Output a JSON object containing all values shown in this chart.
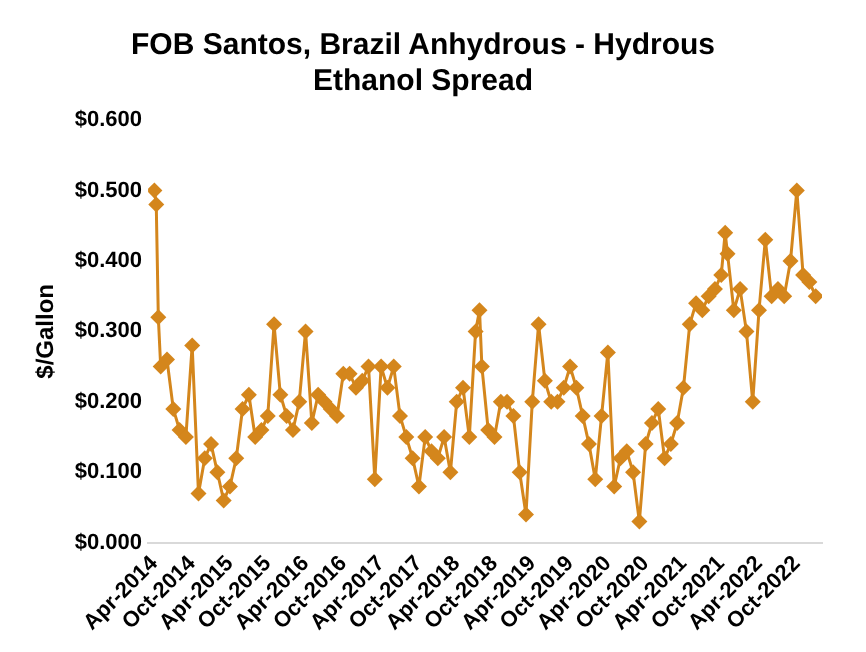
{
  "chart_data": {
    "type": "line",
    "title": "FOB Santos, Brazil Anhydrous - Hydrous Ethanol Spread",
    "ylabel": "$/Gallon",
    "x": [
      "2014-04-01",
      "2014-04-10",
      "2014-04-20",
      "2014-05",
      "2014-06",
      "2014-07",
      "2014-08",
      "2014-09",
      "2014-10",
      "2014-11",
      "2014-12",
      "2015-01",
      "2015-02",
      "2015-03",
      "2015-04",
      "2015-05",
      "2015-06",
      "2015-07",
      "2015-08",
      "2015-09",
      "2015-10",
      "2015-11",
      "2015-12",
      "2016-01",
      "2016-02",
      "2016-03",
      "2016-04",
      "2016-05",
      "2016-06",
      "2016-07",
      "2016-08",
      "2016-09",
      "2016-10",
      "2016-11",
      "2016-12",
      "2017-01",
      "2017-02",
      "2017-03",
      "2017-04",
      "2017-05",
      "2017-06",
      "2017-07",
      "2017-08",
      "2017-09",
      "2017-10",
      "2017-11",
      "2017-12",
      "2018-01",
      "2018-02",
      "2018-03",
      "2018-04",
      "2018-05",
      "2018-06",
      "2018-07",
      "2018-07-20",
      "2018-08",
      "2018-09",
      "2018-10",
      "2018-11",
      "2018-12",
      "2019-01",
      "2019-02",
      "2019-03",
      "2019-04",
      "2019-05",
      "2019-06",
      "2019-07",
      "2019-08",
      "2019-09",
      "2019-10",
      "2019-11",
      "2019-12",
      "2020-01",
      "2020-02",
      "2020-03",
      "2020-04",
      "2020-05",
      "2020-06",
      "2020-07",
      "2020-08",
      "2020-09",
      "2020-10",
      "2020-11",
      "2020-12",
      "2021-01",
      "2021-02",
      "2021-03",
      "2021-04",
      "2021-05",
      "2021-06",
      "2021-07",
      "2021-08",
      "2021-09",
      "2021-10",
      "2021-10-20",
      "2021-11",
      "2021-12",
      "2022-01",
      "2022-02",
      "2022-03",
      "2022-04",
      "2022-05",
      "2022-06",
      "2022-07",
      "2022-08",
      "2022-09",
      "2022-10",
      "2022-11",
      "2022-12",
      "2023-01"
    ],
    "series": [
      {
        "color": "#d4861c",
        "values": [
          0.5,
          0.48,
          0.32,
          0.25,
          0.26,
          0.19,
          0.16,
          0.15,
          0.28,
          0.07,
          0.12,
          0.14,
          0.1,
          0.06,
          0.08,
          0.12,
          0.19,
          0.21,
          0.15,
          0.16,
          0.18,
          0.31,
          0.21,
          0.18,
          0.16,
          0.2,
          0.3,
          0.17,
          0.21,
          0.2,
          0.19,
          0.18,
          0.24,
          0.24,
          0.22,
          0.23,
          0.25,
          0.09,
          0.25,
          0.22,
          0.25,
          0.18,
          0.15,
          0.12,
          0.08,
          0.15,
          0.13,
          0.12,
          0.15,
          0.1,
          0.2,
          0.22,
          0.15,
          0.3,
          0.33,
          0.25,
          0.16,
          0.15,
          0.2,
          0.2,
          0.18,
          0.1,
          0.04,
          0.2,
          0.31,
          0.23,
          0.2,
          0.2,
          0.22,
          0.25,
          0.22,
          0.18,
          0.14,
          0.09,
          0.18,
          0.27,
          0.08,
          0.12,
          0.13,
          0.1,
          0.03,
          0.14,
          0.17,
          0.19,
          0.12,
          0.14,
          0.17,
          0.22,
          0.31,
          0.34,
          0.33,
          0.35,
          0.36,
          0.38,
          0.44,
          0.41,
          0.33,
          0.36,
          0.3,
          0.2,
          0.33,
          0.43,
          0.35,
          0.36,
          0.35,
          0.4,
          0.5,
          0.38,
          0.37,
          0.35
        ]
      }
    ],
    "xlim": [
      "2014-03",
      "2023-02"
    ],
    "xticks": [
      {
        "value": "2014-04",
        "label": "Apr-2014"
      },
      {
        "value": "2014-10",
        "label": "Oct-2014"
      },
      {
        "value": "2015-04",
        "label": "Apr-2015"
      },
      {
        "value": "2015-10",
        "label": "Oct-2015"
      },
      {
        "value": "2016-04",
        "label": "Apr-2016"
      },
      {
        "value": "2016-10",
        "label": "Oct-2016"
      },
      {
        "value": "2017-04",
        "label": "Apr-2017"
      },
      {
        "value": "2017-10",
        "label": "Oct-2017"
      },
      {
        "value": "2018-04",
        "label": "Apr-2018"
      },
      {
        "value": "2018-10",
        "label": "Oct-2018"
      },
      {
        "value": "2019-04",
        "label": "Apr-2019"
      },
      {
        "value": "2019-10",
        "label": "Oct-2019"
      },
      {
        "value": "2020-04",
        "label": "Apr-2020"
      },
      {
        "value": "2020-10",
        "label": "Oct-2020"
      },
      {
        "value": "2021-04",
        "label": "Apr-2021"
      },
      {
        "value": "2021-10",
        "label": "Oct-2021"
      },
      {
        "value": "2022-04",
        "label": "Apr-2022"
      },
      {
        "value": "2022-10",
        "label": "Oct-2022"
      }
    ],
    "ylim": [
      0,
      0.6
    ],
    "yticks": [
      {
        "value": 0,
        "label": "$0.000"
      },
      {
        "value": 0.1,
        "label": "$0.100"
      },
      {
        "value": 0.2,
        "label": "$0.200"
      },
      {
        "value": 0.3,
        "label": "$0.300"
      },
      {
        "value": 0.4,
        "label": "$0.400"
      },
      {
        "value": 0.5,
        "label": "$0.500"
      },
      {
        "value": 0.6,
        "label": "$0.600"
      }
    ],
    "grid": false,
    "legend": false,
    "marker": "diamond",
    "line_style": "solid"
  }
}
